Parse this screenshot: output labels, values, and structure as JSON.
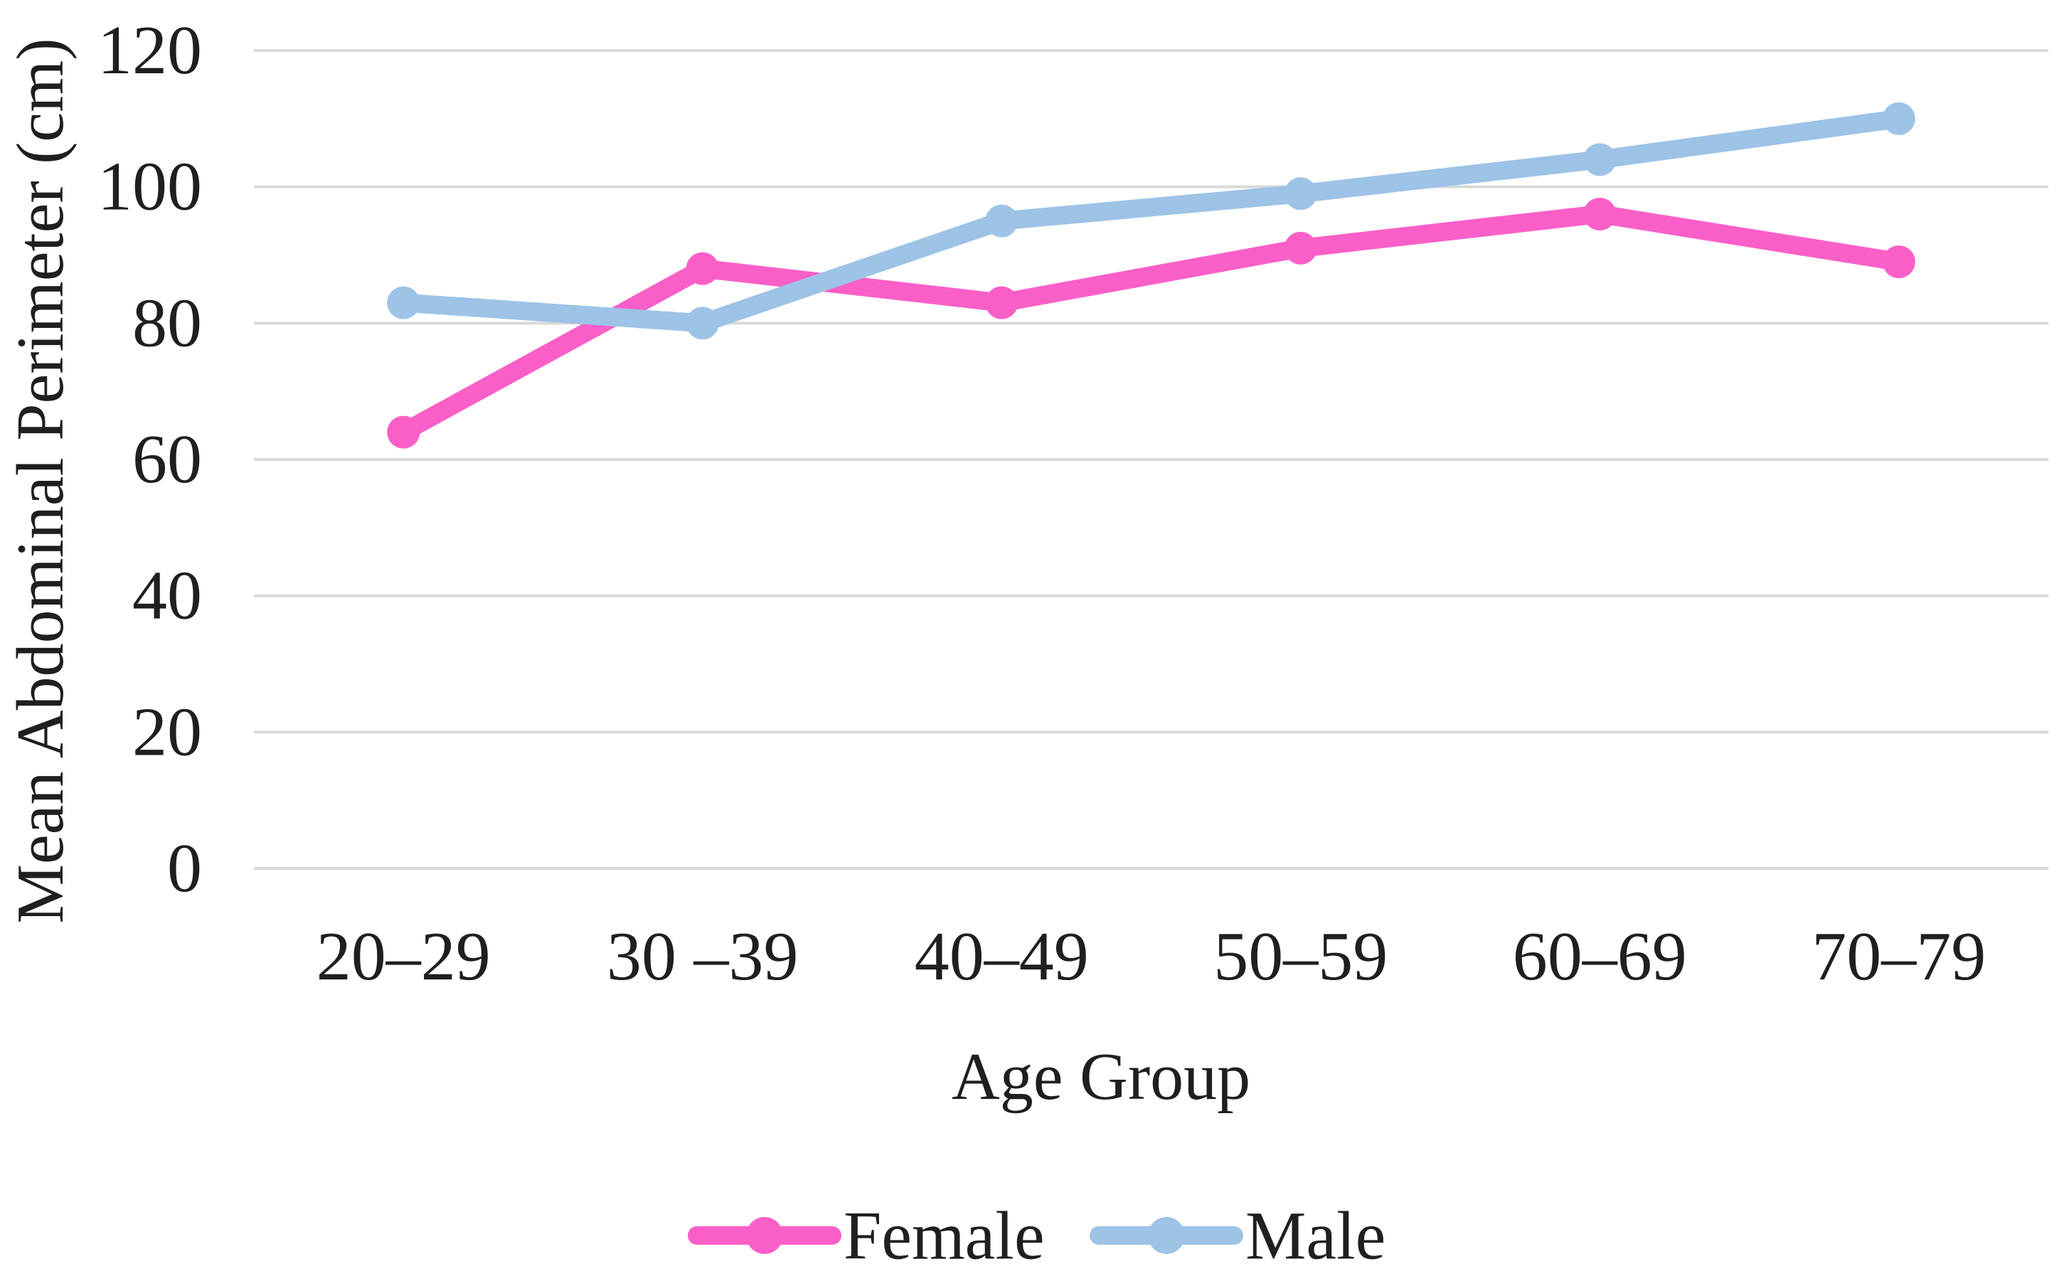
{
  "chart_data": {
    "type": "line",
    "title": "",
    "categories": [
      "20–29",
      "30 –39",
      "40–49",
      "50–59",
      "60–69",
      "70–79"
    ],
    "series": [
      {
        "name": "Female",
        "color": "#FA5FC8",
        "values": [
          64,
          88,
          83,
          91,
          96,
          89
        ]
      },
      {
        "name": "Male",
        "color": "#9DC3E6",
        "values": [
          83,
          80,
          95,
          99,
          104,
          110
        ]
      }
    ],
    "xlabel": "Age Group",
    "ylabel": "Mean Abdominal Perimeter (cm)",
    "ylim": [
      0,
      120
    ],
    "yticks": [
      0,
      20,
      40,
      60,
      80,
      100,
      120
    ],
    "grid": "horizontal-only",
    "gridline_color": "#D9D9D9",
    "text_color": "#1F1F1F",
    "background_color": "#FFFFFF",
    "legend_position": "bottom-center",
    "marker": "circle"
  }
}
